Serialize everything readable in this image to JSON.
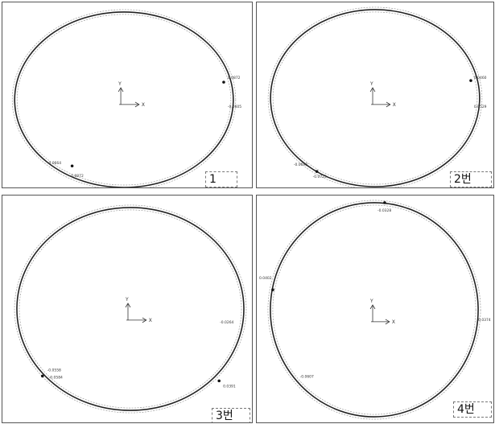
{
  "panels": [
    {
      "tag": "1",
      "axis": {
        "x": "X",
        "y": "Y"
      },
      "values": [
        "0.0872",
        "-0.0605",
        "-0.0664",
        "-0.0872"
      ]
    },
    {
      "tag": "2번",
      "axis": {
        "x": "X",
        "y": "Y"
      },
      "values": [
        "0.0460",
        "0.0529",
        "-0.0698",
        "-0.0725"
      ]
    },
    {
      "tag": "3번",
      "axis": {
        "x": "X",
        "y": "Y"
      },
      "values": [
        "-0.0264",
        "-0.0558",
        "-0.0584",
        "0.0391"
      ]
    },
    {
      "tag": "4번",
      "axis": {
        "x": "X",
        "y": "Y"
      },
      "values": [
        "-0.0328",
        "0.0402",
        "0.0374",
        "-0.0607"
      ]
    }
  ]
}
